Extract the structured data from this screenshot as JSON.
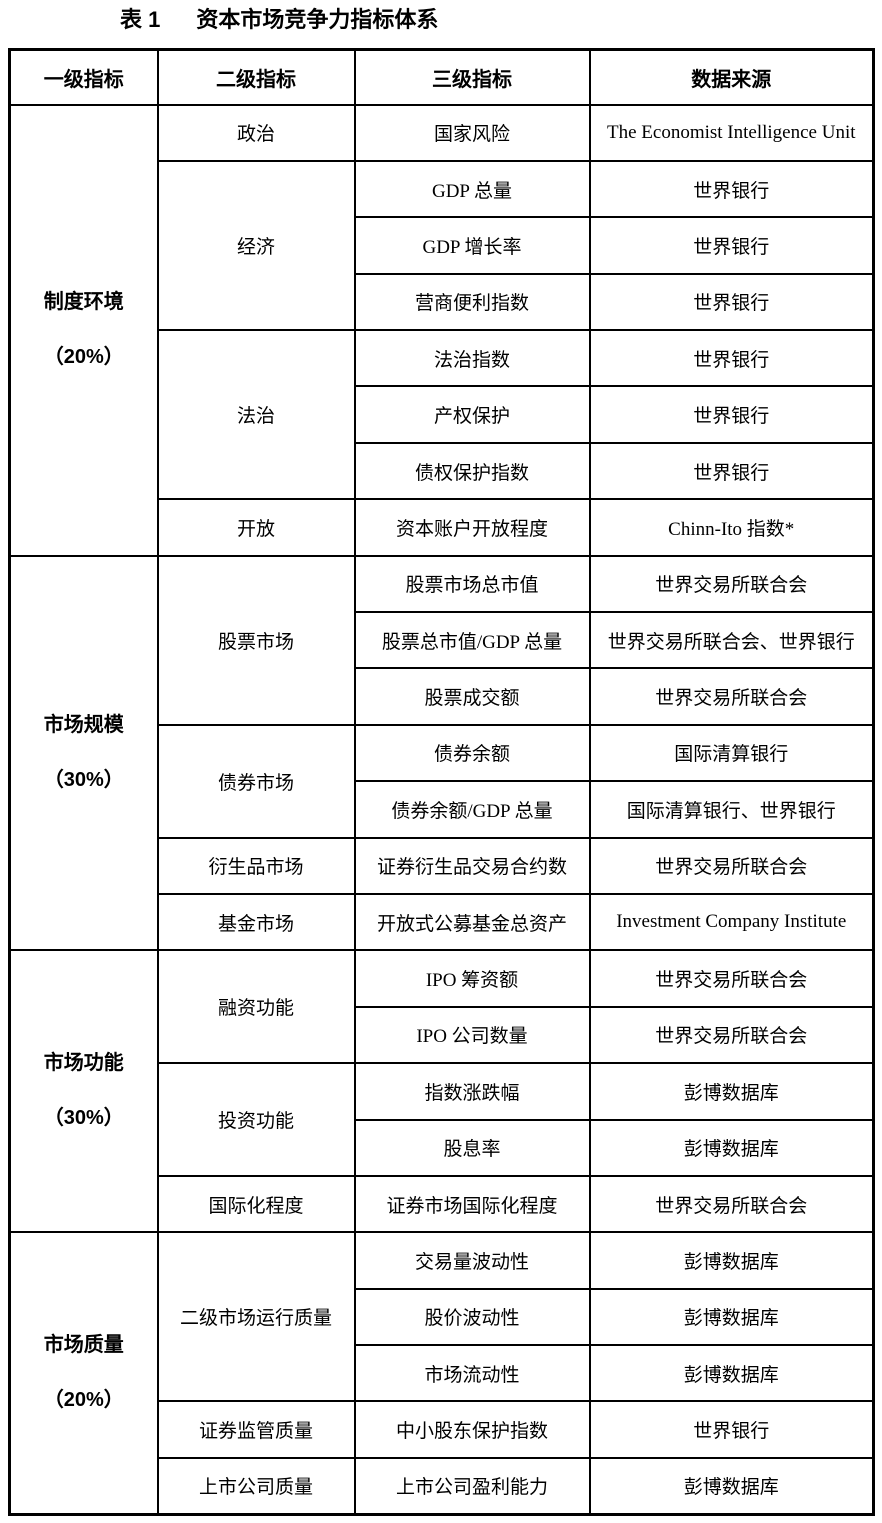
{
  "title": {
    "label": "表 1",
    "text": "资本市场竞争力指标体系"
  },
  "table": {
    "headers": [
      "一级指标",
      "二级指标",
      "三级指标",
      "数据来源"
    ],
    "sections": [
      {
        "level1": "制度环境",
        "weight": "（20%）",
        "groups": [
          {
            "level2": "政治",
            "rows": [
              {
                "level3": "国家风险",
                "source": "The Economist Intelligence Unit"
              }
            ]
          },
          {
            "level2": "经济",
            "rows": [
              {
                "level3": "GDP 总量",
                "source": "世界银行"
              },
              {
                "level3": "GDP 增长率",
                "source": "世界银行"
              },
              {
                "level3": "营商便利指数",
                "source": "世界银行"
              }
            ]
          },
          {
            "level2": "法治",
            "rows": [
              {
                "level3": "法治指数",
                "source": "世界银行"
              },
              {
                "level3": "产权保护",
                "source": "世界银行"
              },
              {
                "level3": "债权保护指数",
                "source": "世界银行"
              }
            ]
          },
          {
            "level2": "开放",
            "rows": [
              {
                "level3": "资本账户开放程度",
                "source": "Chinn-Ito 指数*"
              }
            ]
          }
        ]
      },
      {
        "level1": "市场规模",
        "weight": "（30%）",
        "groups": [
          {
            "level2": "股票市场",
            "rows": [
              {
                "level3": "股票市场总市值",
                "source": "世界交易所联合会"
              },
              {
                "level3": "股票总市值/GDP 总量",
                "source": "世界交易所联合会、世界银行"
              },
              {
                "level3": "股票成交额",
                "source": "世界交易所联合会"
              }
            ]
          },
          {
            "level2": "债券市场",
            "rows": [
              {
                "level3": "债券余额",
                "source": "国际清算银行"
              },
              {
                "level3": "债券余额/GDP 总量",
                "source": "国际清算银行、世界银行"
              }
            ]
          },
          {
            "level2": "衍生品市场",
            "rows": [
              {
                "level3": "证券衍生品交易合约数",
                "source": "世界交易所联合会"
              }
            ]
          },
          {
            "level2": "基金市场",
            "rows": [
              {
                "level3": "开放式公募基金总资产",
                "source": "Investment Company Institute"
              }
            ]
          }
        ]
      },
      {
        "level1": "市场功能",
        "weight": "（30%）",
        "groups": [
          {
            "level2": "融资功能",
            "rows": [
              {
                "level3": "IPO 筹资额",
                "source": "世界交易所联合会"
              },
              {
                "level3": "IPO 公司数量",
                "source": "世界交易所联合会"
              }
            ]
          },
          {
            "level2": "投资功能",
            "rows": [
              {
                "level3": "指数涨跌幅",
                "source": "彭博数据库"
              },
              {
                "level3": "股息率",
                "source": "彭博数据库"
              }
            ]
          },
          {
            "level2": "国际化程度",
            "rows": [
              {
                "level3": "证券市场国际化程度",
                "source": "世界交易所联合会"
              }
            ]
          }
        ]
      },
      {
        "level1": "市场质量",
        "weight": "（20%）",
        "groups": [
          {
            "level2": "二级市场运行质量",
            "rows": [
              {
                "level3": "交易量波动性",
                "source": "彭博数据库"
              },
              {
                "level3": "股价波动性",
                "source": "彭博数据库"
              },
              {
                "level3": "市场流动性",
                "source": "彭博数据库"
              }
            ]
          },
          {
            "level2": "证券监管质量",
            "rows": [
              {
                "level3": "中小股东保护指数",
                "source": "世界银行"
              }
            ]
          },
          {
            "level2": "上市公司质量",
            "rows": [
              {
                "level3": "上市公司盈利能力",
                "source": "彭博数据库"
              }
            ]
          }
        ]
      }
    ]
  }
}
